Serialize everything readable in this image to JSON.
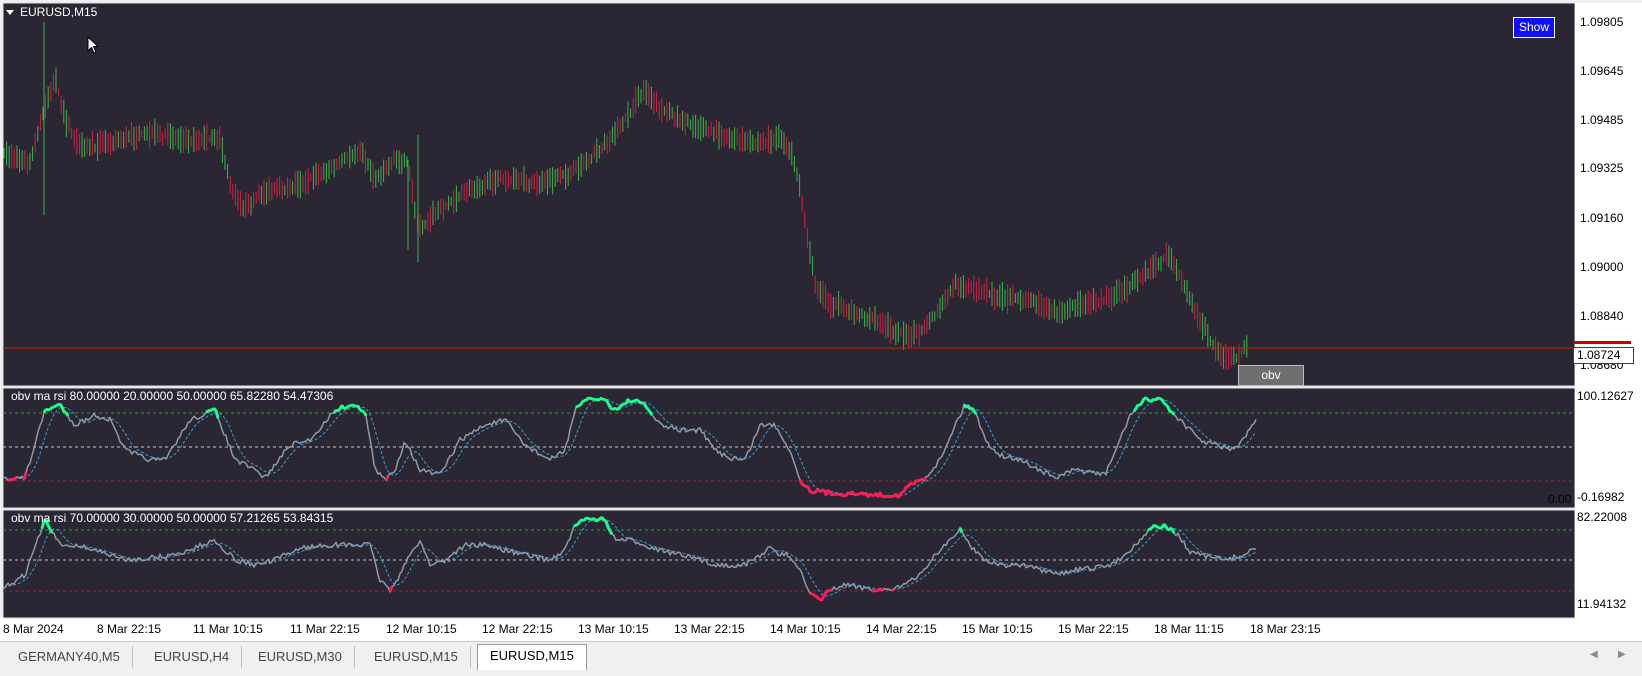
{
  "window": {
    "symbol_title": "EURUSD,M15"
  },
  "buttons": {
    "show": "Show",
    "obv": "obv"
  },
  "price_axis": {
    "labels": [
      "1.09805",
      "1.09645",
      "1.09485",
      "1.09325",
      "1.09160",
      "1.09000",
      "1.08840",
      "1.08680"
    ],
    "current_price": "1.08724"
  },
  "indicator1": {
    "caption": "obv ma rsi 80.00000 20.00000 50.00000 65.82280 54.47306",
    "axis_top": "100.12627",
    "axis_bottom": "0.00",
    "axis_bottom2": "-0.16982"
  },
  "indicator2": {
    "caption": "obv ma rsi 70.00000 30.00000 50.00000 57.21265 53.84315",
    "axis_top": "82.22008",
    "axis_bottom": "11.94132"
  },
  "time_axis": [
    "8 Mar 2024",
    "8 Mar 22:15",
    "11 Mar 10:15",
    "11 Mar 22:15",
    "12 Mar 10:15",
    "12 Mar 22:15",
    "13 Mar 10:15",
    "13 Mar 22:15",
    "14 Mar 10:15",
    "14 Mar 22:15",
    "15 Mar 10:15",
    "15 Mar 22:15",
    "18 Mar 11:15",
    "18 Mar 23:15"
  ],
  "tabs": [
    "GERMANY40,M5",
    "EURUSD,H4",
    "EURUSD,M30",
    "EURUSD,M15",
    "EURUSD,M15"
  ],
  "active_tab_index": 4,
  "colors": {
    "background": "#2a2633",
    "bull": "#3fb24a",
    "bear": "#d0213f",
    "rsi_line": "#8f9aa8",
    "signal_line": "#3aa0d8",
    "overbought": "#19ff8c",
    "oversold": "#ff1a55",
    "bid_line": "#cc2200"
  }
}
